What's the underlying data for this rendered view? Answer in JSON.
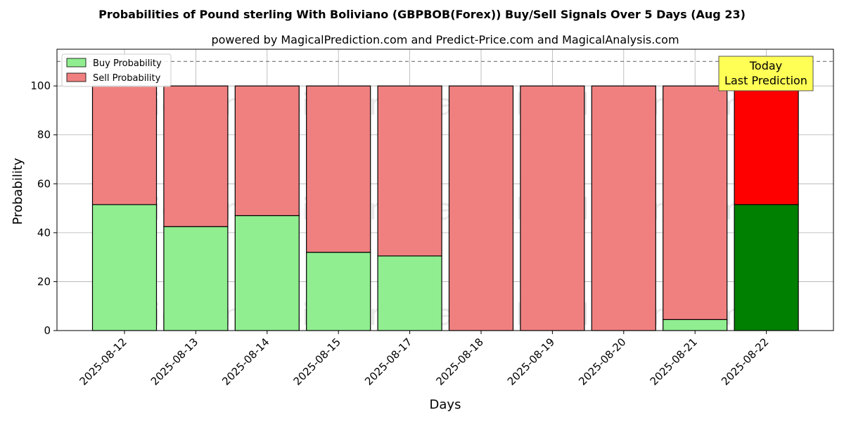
{
  "chart_data": {
    "type": "bar",
    "stacked": true,
    "title": "Probabilities of Pound sterling With Boliviano (GBPBOB(Forex)) Buy/Sell Signals Over 5 Days (Aug 23)",
    "subtitle": "powered by MagicalPrediction.com and Predict-Price.com and MagicalAnalysis.com",
    "xlabel": "Days",
    "ylabel": "Probability",
    "ylim": [
      0,
      115
    ],
    "yticks": [
      0,
      20,
      40,
      60,
      80,
      100
    ],
    "grid": true,
    "legend_position": "top-left",
    "reference_line": 110,
    "categories": [
      "2025-08-12",
      "2025-08-13",
      "2025-08-14",
      "2025-08-15",
      "2025-08-17",
      "2025-08-18",
      "2025-08-19",
      "2025-08-20",
      "2025-08-21",
      "2025-08-22"
    ],
    "series": [
      {
        "name": "Buy Probability",
        "values": [
          51.5,
          42.5,
          47,
          32,
          30.5,
          0,
          0,
          0,
          4.5,
          51.5
        ],
        "color": "#90ee90",
        "highlight_color": "#008000"
      },
      {
        "name": "Sell Probability",
        "values": [
          48.5,
          57.5,
          53,
          68,
          69.5,
          100,
          100,
          100,
          95.5,
          48.5
        ],
        "color": "#f08080",
        "highlight_color": "#ff0000"
      }
    ],
    "highlight_index": 9,
    "annotation": {
      "lines": [
        "Today",
        "Last Prediction"
      ],
      "color": "#ffff55"
    },
    "watermarks": [
      "MagicalAnalysis.com",
      "MagicalPrediction.com"
    ]
  }
}
